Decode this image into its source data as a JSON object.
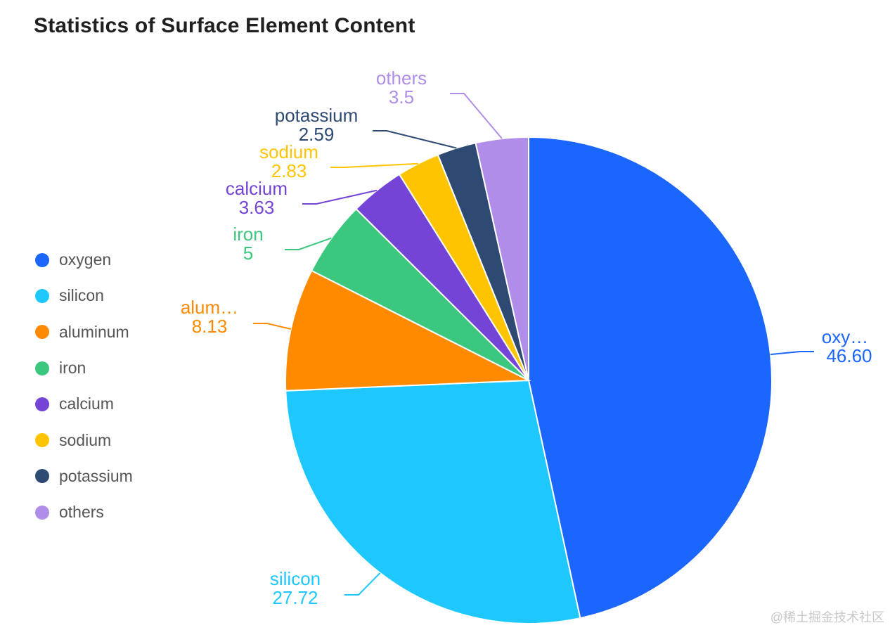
{
  "chart_data": {
    "type": "pie",
    "title": "Statistics of Surface Element Content",
    "legend_position": "left",
    "series": [
      {
        "name": "oxygen",
        "label": "oxy…",
        "value_label": "46.60",
        "value": 46.6,
        "color": "#1a66ff"
      },
      {
        "name": "silicon",
        "label": "silicon",
        "value_label": "27.72",
        "value": 27.72,
        "color": "#1ec8ff"
      },
      {
        "name": "aluminum",
        "label": "alum…",
        "value_label": "8.13",
        "value": 8.13,
        "color": "#ff8a00"
      },
      {
        "name": "iron",
        "label": "iron",
        "value_label": "5",
        "value": 5,
        "color": "#3cc77e"
      },
      {
        "name": "calcium",
        "label": "calcium",
        "value_label": "3.63",
        "value": 3.63,
        "color": "#7444d7"
      },
      {
        "name": "sodium",
        "label": "sodium",
        "value_label": "2.83",
        "value": 2.83,
        "color": "#ffc400"
      },
      {
        "name": "potassium",
        "label": "potassium",
        "value_label": "2.59",
        "value": 2.59,
        "color": "#2e4a73"
      },
      {
        "name": "others",
        "label": "others",
        "value_label": "3.5",
        "value": 3.5,
        "color": "#b08de8"
      }
    ]
  },
  "watermark": "@稀土掘金技术社区"
}
